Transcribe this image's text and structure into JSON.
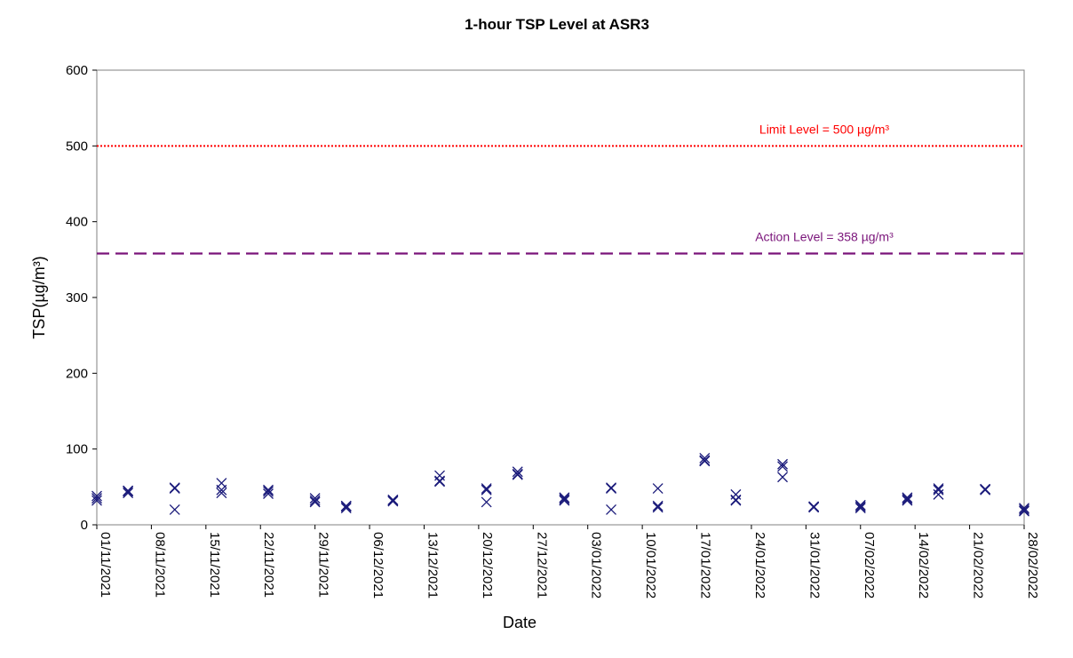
{
  "chart_data": {
    "type": "scatter",
    "title": "1-hour TSP Level at ASR3",
    "xlabel": "Date",
    "ylabel": "TSP(µg/m³)",
    "ylim": [
      0,
      600
    ],
    "yticks": [
      0,
      100,
      200,
      300,
      400,
      500,
      600
    ],
    "xlim": [
      "2021-11-01",
      "2022-02-28"
    ],
    "xticks": [
      "01/11/2021",
      "08/11/2021",
      "15/11/2021",
      "22/11/2021",
      "29/11/2021",
      "06/12/2021",
      "13/12/2021",
      "20/12/2021",
      "27/12/2021",
      "03/01/2022",
      "10/01/2022",
      "17/01/2022",
      "24/01/2022",
      "31/01/2022",
      "07/02/2022",
      "14/02/2022",
      "21/02/2022",
      "28/02/2022"
    ],
    "grid": false,
    "marker": "x",
    "marker_color": "#1a1a7a",
    "reference_lines": [
      {
        "label": "Limit Level = 500 µg/m³",
        "value": 500,
        "color": "#ff0000",
        "style": "dotted"
      },
      {
        "label": "Action Level = 358 µg/m³",
        "value": 358,
        "color": "#7a147a",
        "style": "dashed"
      }
    ],
    "series": [
      {
        "points": [
          {
            "date": "2021-11-01",
            "values": [
              32,
              38,
              35
            ]
          },
          {
            "date": "2021-11-05",
            "values": [
              42,
              45,
              44
            ]
          },
          {
            "date": "2021-11-11",
            "values": [
              49,
              48,
              20
            ]
          },
          {
            "date": "2021-11-17",
            "values": [
              55,
              42,
              46
            ]
          },
          {
            "date": "2021-11-23",
            "values": [
              46,
              41,
              44
            ]
          },
          {
            "date": "2021-11-29",
            "values": [
              35,
              30,
              32
            ]
          },
          {
            "date": "2021-12-03",
            "values": [
              25,
              22,
              24
            ]
          },
          {
            "date": "2021-12-09",
            "values": [
              31,
              33,
              32
            ]
          },
          {
            "date": "2021-12-15",
            "values": [
              65,
              58,
              57
            ]
          },
          {
            "date": "2021-12-21",
            "values": [
              48,
              46,
              30
            ]
          },
          {
            "date": "2021-12-25",
            "values": [
              70,
              66,
              67
            ]
          },
          {
            "date": "2021-12-31",
            "values": [
              36,
              32,
              34
            ]
          },
          {
            "date": "2022-01-06",
            "values": [
              49,
              48,
              20
            ]
          },
          {
            "date": "2022-01-12",
            "values": [
              48,
              25,
              23
            ]
          },
          {
            "date": "2022-01-18",
            "values": [
              88,
              84,
              85
            ]
          },
          {
            "date": "2022-01-22",
            "values": [
              40,
              33,
              32
            ]
          },
          {
            "date": "2022-01-28",
            "values": [
              80,
              77,
              63
            ]
          },
          {
            "date": "2022-02-01",
            "values": [
              24,
              23,
              24
            ]
          },
          {
            "date": "2022-02-07",
            "values": [
              26,
              22,
              24
            ]
          },
          {
            "date": "2022-02-13",
            "values": [
              36,
              32,
              34
            ]
          },
          {
            "date": "2022-02-17",
            "values": [
              48,
              40,
              46
            ]
          },
          {
            "date": "2022-02-23",
            "values": [
              47,
              46,
              47
            ]
          },
          {
            "date": "2022-02-28",
            "values": [
              22,
              18,
              20
            ]
          }
        ]
      }
    ]
  }
}
